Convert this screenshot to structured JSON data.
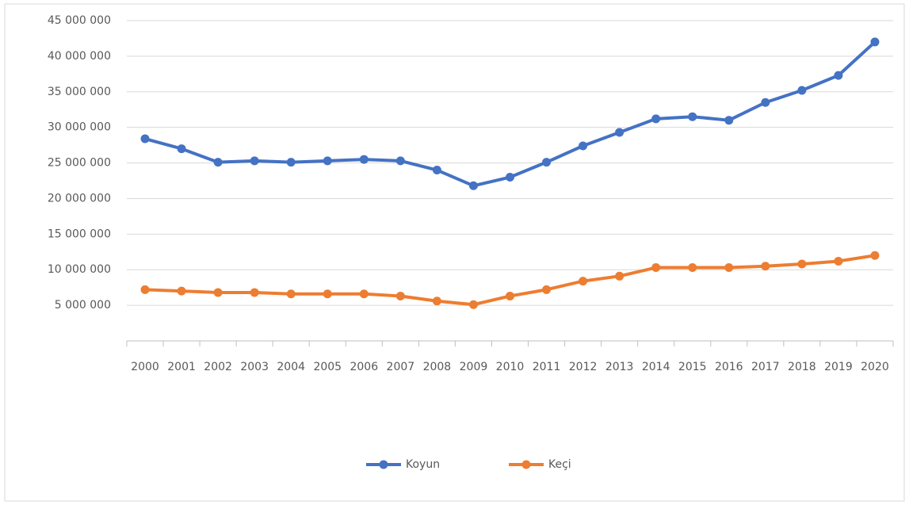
{
  "chart_data": {
    "type": "line",
    "categories": [
      "2000",
      "2001",
      "2002",
      "2003",
      "2004",
      "2005",
      "2006",
      "2007",
      "2008",
      "2009",
      "2010",
      "2011",
      "2012",
      "2013",
      "2014",
      "2015",
      "2016",
      "2017",
      "2018",
      "2019",
      "2020"
    ],
    "series": [
      {
        "name": "Koyun",
        "color": "#4472c4",
        "values": [
          28400000,
          27000000,
          25100000,
          25300000,
          25100000,
          25300000,
          25500000,
          25300000,
          24000000,
          21800000,
          23000000,
          25100000,
          27400000,
          29300000,
          31200000,
          31500000,
          31000000,
          33500000,
          35200000,
          37300000,
          42000000
        ]
      },
      {
        "name": "Keçi",
        "color": "#ed7d31",
        "values": [
          7200000,
          7000000,
          6800000,
          6800000,
          6600000,
          6600000,
          6600000,
          6300000,
          5600000,
          5100000,
          6300000,
          7200000,
          8400000,
          9100000,
          10300000,
          10300000,
          10300000,
          10500000,
          10800000,
          11200000,
          12000000
        ]
      }
    ],
    "ylim": [
      0,
      45000000
    ],
    "yticks": [
      {
        "value": 5000000,
        "label": "5 000 000"
      },
      {
        "value": 10000000,
        "label": "10 000 000"
      },
      {
        "value": 15000000,
        "label": "15 000 000"
      },
      {
        "value": 20000000,
        "label": "20 000 000"
      },
      {
        "value": 25000000,
        "label": "25 000 000"
      },
      {
        "value": 30000000,
        "label": "30 000 000"
      },
      {
        "value": 35000000,
        "label": "35 000 000"
      },
      {
        "value": 40000000,
        "label": "40 000 000"
      },
      {
        "value": 45000000,
        "label": "45 000 000"
      }
    ],
    "grid": true,
    "legend": "bottom"
  }
}
